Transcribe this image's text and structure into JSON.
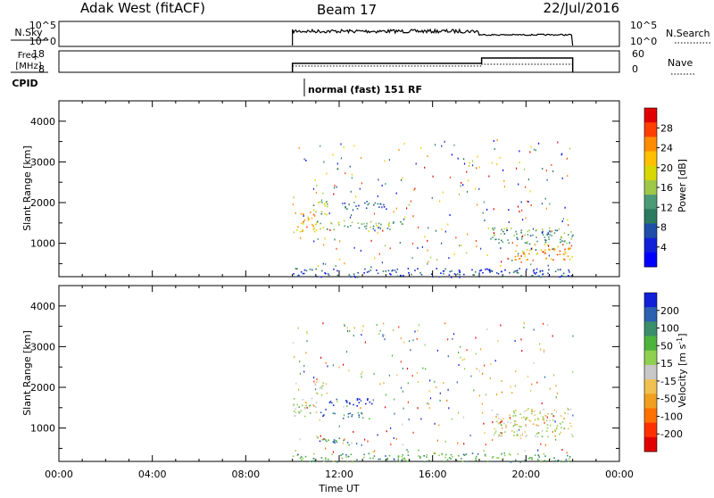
{
  "header": {
    "station": "Adak West (fitACF)",
    "beam": "Beam 17",
    "date": "22/Jul/2016"
  },
  "nsky_panel": {
    "left_label": "N.Sky",
    "right_label": "N.Search",
    "left_ticks": [
      "10^5",
      "10^0"
    ],
    "right_ticks": [
      "10^5",
      "10^0"
    ]
  },
  "freq_panel": {
    "left_label_line1": "Freq.",
    "left_label_line2": "[MHz]",
    "right_label": "Nave",
    "left_ticks": [
      "18",
      "8"
    ],
    "right_ticks": [
      "60",
      "0"
    ]
  },
  "cpid": {
    "label": "CPID",
    "mode_text": "normal (fast) 151 RF"
  },
  "time_axis": {
    "label": "Time UT",
    "ticks": [
      "00:00",
      "04:00",
      "08:00",
      "12:00",
      "16:00",
      "20:00",
      "00:00"
    ]
  },
  "chart_data": [
    {
      "type": "heatmap",
      "name": "power",
      "xlabel": "Time UT",
      "ylabel": "Slant Range [km]",
      "x_range_hours": [
        0,
        24
      ],
      "ylim": [
        180,
        4500
      ],
      "yticks": [
        1000,
        2000,
        3000,
        4000
      ],
      "data_window_hours": [
        10,
        22
      ],
      "colorbar": {
        "label": "Power [dB]",
        "ticks": [
          "28",
          "24",
          "20",
          "16",
          "12",
          "8",
          "4"
        ],
        "colors": [
          "#e00000",
          "#ff4000",
          "#ff8c00",
          "#ffc000",
          "#d8d800",
          "#a0c848",
          "#4a9a78",
          "#2c7a60",
          "#1e4ea8",
          "#1020d8",
          "#0000ff"
        ]
      },
      "echo_regions": [
        {
          "t0": 10.0,
          "t1": 11.0,
          "r0": 1300,
          "r1": 1800,
          "level": 0.7
        },
        {
          "t0": 10.8,
          "t1": 11.5,
          "r0": 1700,
          "r1": 2100,
          "level": 0.5
        },
        {
          "t0": 11.0,
          "t1": 14.8,
          "r0": 1350,
          "r1": 1550,
          "level": 0.45
        },
        {
          "t0": 12.0,
          "t1": 14.0,
          "r0": 1850,
          "r1": 2050,
          "level": 0.3
        },
        {
          "t0": 18.5,
          "t1": 22.0,
          "r0": 1000,
          "r1": 1400,
          "level": 0.4
        },
        {
          "t0": 19.5,
          "t1": 22.0,
          "r0": 600,
          "r1": 1000,
          "level": 0.75
        },
        {
          "t0": 10.0,
          "t1": 22.0,
          "r0": 180,
          "r1": 400,
          "level": 0.2
        }
      ]
    },
    {
      "type": "heatmap",
      "name": "velocity",
      "xlabel": "Time UT",
      "ylabel": "Slant Range [km]",
      "x_range_hours": [
        0,
        24
      ],
      "ylim": [
        180,
        4500
      ],
      "yticks": [
        1000,
        2000,
        3000,
        4000
      ],
      "data_window_hours": [
        10,
        22
      ],
      "colorbar": {
        "label": "Velocity [m s^-1]",
        "ticks": [
          "200",
          "100",
          "50",
          "15",
          "-15",
          "-50",
          "-100",
          "-200"
        ],
        "colors": [
          "#1020d8",
          "#2c60b0",
          "#3a8e6a",
          "#4cb43c",
          "#90d050",
          "#c8c8c8",
          "#f0c050",
          "#f0a020",
          "#ff7000",
          "#ff3000",
          "#e00000"
        ]
      },
      "echo_regions": [
        {
          "t0": 10.0,
          "t1": 11.0,
          "r0": 1300,
          "r1": 1800,
          "level": 0.55
        },
        {
          "t0": 10.8,
          "t1": 11.5,
          "r0": 1800,
          "r1": 2150,
          "level": 0.5
        },
        {
          "t0": 11.5,
          "t1": 13.5,
          "r0": 1550,
          "r1": 1750,
          "level": 0.98
        },
        {
          "t0": 11.0,
          "t1": 13.0,
          "r0": 1250,
          "r1": 1400,
          "level": 0.8
        },
        {
          "t0": 11.0,
          "t1": 12.5,
          "r0": 600,
          "r1": 800,
          "level": 0.8
        },
        {
          "t0": 18.5,
          "t1": 22.0,
          "r0": 800,
          "r1": 1500,
          "level": 0.5
        },
        {
          "t0": 10.0,
          "t1": 22.0,
          "r0": 180,
          "r1": 400,
          "level": 0.7
        }
      ]
    }
  ]
}
